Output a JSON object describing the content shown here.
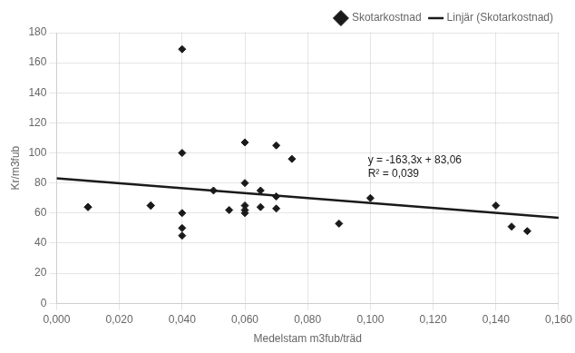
{
  "chart_data": {
    "type": "scatter",
    "xlabel": "Medelstam m3fub/träd",
    "ylabel": "Kr/m3fub",
    "annotation": "y = -163,3x + 83,06\nR² = 0,039",
    "series": [
      {
        "name": "Skotarkostnad",
        "type": "scatter",
        "color": "#1a1a1a",
        "marker": "diamond",
        "x": [
          0.01,
          0.01,
          0.03,
          0.03,
          0.04,
          0.04,
          0.04,
          0.04,
          0.04,
          0.05,
          0.055,
          0.06,
          0.06,
          0.06,
          0.06,
          0.06,
          0.065,
          0.065,
          0.07,
          0.07,
          0.07,
          0.075,
          0.09,
          0.1,
          0.14,
          0.145,
          0.15
        ],
        "values": [
          64,
          64,
          65,
          65,
          100,
          60,
          50,
          45,
          169,
          75,
          62,
          62,
          60,
          65,
          107,
          80,
          75,
          64,
          71,
          63,
          105,
          96,
          53,
          70,
          65,
          51,
          48
        ]
      },
      {
        "name": "Linjär (Skotarkostnad)",
        "type": "line",
        "color": "#1a1a1a",
        "line_style": "solid",
        "x": [
          0.0,
          0.16
        ],
        "values": [
          83.06,
          56.932
        ]
      }
    ],
    "xlim": [
      0.0,
      0.16
    ],
    "ylim": [
      0,
      180
    ],
    "xticks": [
      {
        "value": 0.0,
        "label": "0,000"
      },
      {
        "value": 0.02,
        "label": "0,020"
      },
      {
        "value": 0.04,
        "label": "0,040"
      },
      {
        "value": 0.06,
        "label": "0,060"
      },
      {
        "value": 0.08,
        "label": "0,080"
      },
      {
        "value": 0.1,
        "label": "0,100"
      },
      {
        "value": 0.12,
        "label": "0,120"
      },
      {
        "value": 0.14,
        "label": "0,140"
      },
      {
        "value": 0.16,
        "label": "0,160"
      }
    ],
    "yticks": [
      0,
      20,
      40,
      60,
      80,
      100,
      120,
      140,
      160,
      180
    ],
    "grid": true,
    "legend": "upper right"
  }
}
